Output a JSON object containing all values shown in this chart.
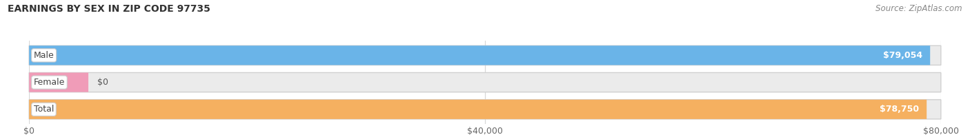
{
  "title": "EARNINGS BY SEX IN ZIP CODE 97735",
  "source": "Source: ZipAtlas.com",
  "categories": [
    "Male",
    "Female",
    "Total"
  ],
  "values": [
    79054,
    0,
    78750
  ],
  "max_value": 80000,
  "bar_colors": [
    "#6ab4e8",
    "#f09cb8",
    "#f5b060"
  ],
  "bar_bg_color": "#ebebeb",
  "bar_border_color": "#d0d0d0",
  "label_texts": [
    "$79,054",
    "$0",
    "$78,750"
  ],
  "tick_labels": [
    "$0",
    "$40,000",
    "$80,000"
  ],
  "tick_values": [
    0,
    40000,
    80000
  ],
  "title_fontsize": 10,
  "source_fontsize": 8.5,
  "value_fontsize": 9,
  "category_fontsize": 9,
  "tick_fontsize": 9,
  "background_color": "#ffffff",
  "grid_color": "#d8d8d8"
}
